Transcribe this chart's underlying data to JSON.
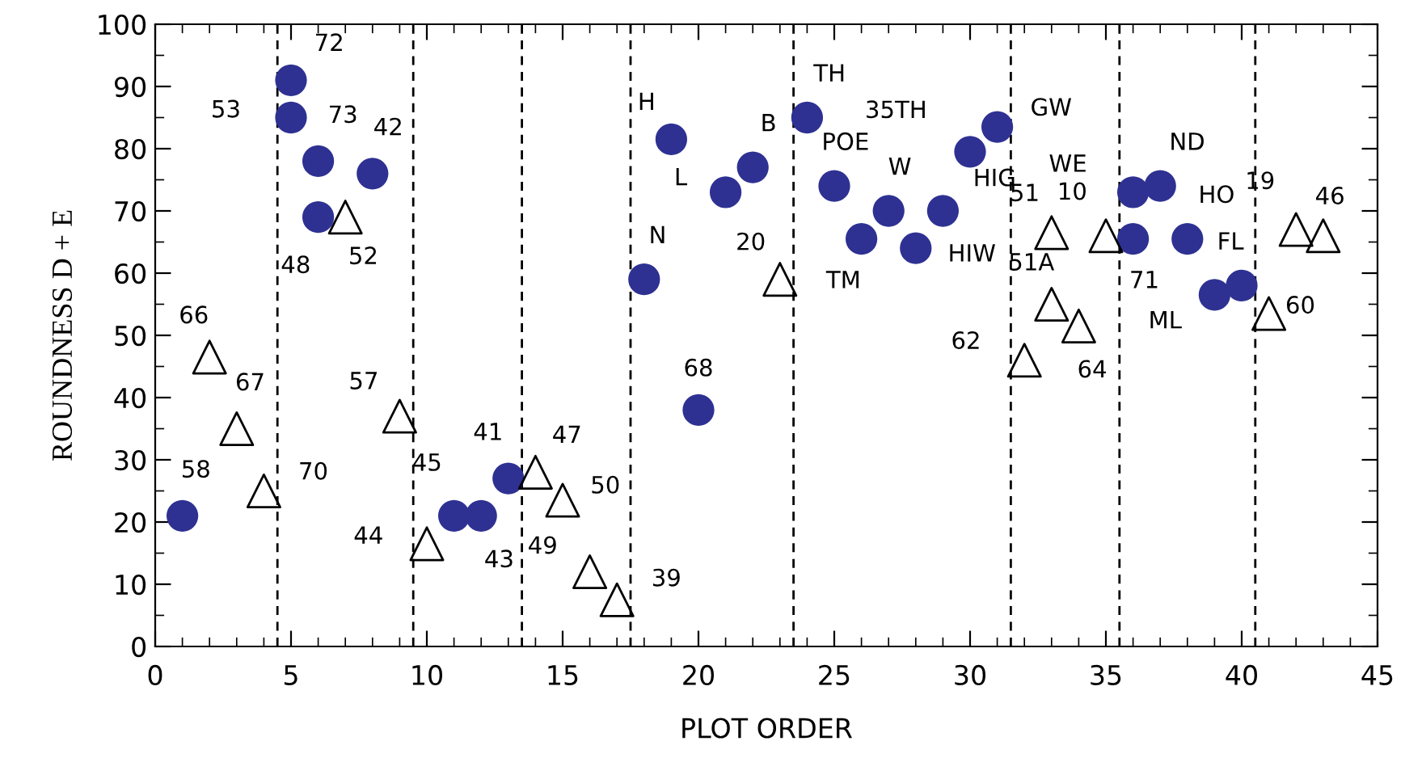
{
  "chart_data": {
    "type": "scatter",
    "xlabel": "PLOT ORDER",
    "ylabel": "ROUNDNESS D + E",
    "xlim": [
      0,
      45
    ],
    "xticks": [
      0,
      5,
      10,
      15,
      20,
      25,
      30,
      35,
      40,
      45
    ],
    "ylim": [
      0,
      100
    ],
    "yticks": [
      0,
      10,
      20,
      30,
      40,
      50,
      60,
      70,
      80,
      90,
      100
    ],
    "grid": false,
    "legend": false,
    "series": [
      {
        "color": "#2e3192",
        "marker": "circle",
        "x": [
          1,
          5,
          5,
          6,
          6,
          8,
          11,
          12,
          13,
          18,
          20,
          19,
          21,
          22,
          24,
          25,
          26,
          27,
          28,
          29,
          30,
          31,
          36,
          36,
          37,
          38,
          39,
          40
        ],
        "values": [
          21,
          91,
          85,
          78,
          69,
          76,
          21,
          21,
          27,
          59,
          38,
          81.5,
          73,
          77,
          85,
          74,
          65.5,
          70,
          64,
          70,
          79.5,
          83.5,
          73,
          65.5,
          74,
          65.5,
          56.5,
          58
        ]
      },
      {
        "color": "#000000",
        "marker": "triangle",
        "x": [
          2,
          3,
          4,
          7,
          9,
          10,
          14,
          15,
          16,
          17,
          23,
          32,
          33,
          33,
          34,
          35,
          41,
          42,
          43
        ],
        "values": [
          46.5,
          35,
          25,
          69,
          37,
          16.5,
          28,
          23.5,
          12,
          7.5,
          59,
          46,
          66.5,
          55,
          51.5,
          66,
          53.5,
          67,
          66
        ]
      }
    ],
    "ref_lines": [
      {
        "axis": "x",
        "value": 4.5,
        "line_style": "dashed"
      },
      {
        "axis": "x",
        "value": 9.5,
        "line_style": "dashed"
      },
      {
        "axis": "x",
        "value": 13.5,
        "line_style": "dashed"
      },
      {
        "axis": "x",
        "value": 17.5,
        "line_style": "dashed"
      },
      {
        "axis": "x",
        "value": 23.5,
        "line_style": "dashed"
      },
      {
        "axis": "x",
        "value": 31.5,
        "line_style": "dashed"
      },
      {
        "axis": "x",
        "value": 35.5,
        "line_style": "dashed"
      },
      {
        "axis": "x",
        "value": 40.5,
        "line_style": "dashed"
      }
    ],
    "annotations": [
      {
        "text": "58",
        "x": 1,
        "y": 21
      },
      {
        "text": "72",
        "x": 5,
        "y": 91
      },
      {
        "text": "53",
        "x": 5,
        "y": 85
      },
      {
        "text": "73",
        "x": 6,
        "y": 78
      },
      {
        "text": "48",
        "x": 6,
        "y": 69
      },
      {
        "text": "42",
        "x": 8,
        "y": 76
      },
      {
        "text": "45",
        "x": 11,
        "y": 21
      },
      {
        "text": "43",
        "x": 12,
        "y": 21
      },
      {
        "text": "41",
        "x": 13,
        "y": 27
      },
      {
        "text": "N",
        "x": 18,
        "y": 59
      },
      {
        "text": "68",
        "x": 20,
        "y": 38
      },
      {
        "text": "H",
        "x": 19,
        "y": 81.5
      },
      {
        "text": "L",
        "x": 21,
        "y": 73
      },
      {
        "text": "B",
        "x": 22,
        "y": 77
      },
      {
        "text": "TH",
        "x": 24,
        "y": 85
      },
      {
        "text": "POE",
        "x": 25,
        "y": 74
      },
      {
        "text": "TM",
        "x": 26,
        "y": 65.5
      },
      {
        "text": "W",
        "x": 27,
        "y": 70
      },
      {
        "text": "HIW",
        "x": 28,
        "y": 64
      },
      {
        "text": "HIG",
        "x": 29,
        "y": 70
      },
      {
        "text": "35TH",
        "x": 30,
        "y": 79.5
      },
      {
        "text": "GW",
        "x": 31,
        "y": 83.5
      },
      {
        "text": "WE",
        "x": 36,
        "y": 73
      },
      {
        "text": "71",
        "x": 36,
        "y": 65.5
      },
      {
        "text": "ND",
        "x": 37,
        "y": 74
      },
      {
        "text": "HO",
        "x": 38,
        "y": 65.5
      },
      {
        "text": "ML",
        "x": 39,
        "y": 56.5
      },
      {
        "text": "FL",
        "x": 40,
        "y": 58
      },
      {
        "text": "66",
        "x": 2,
        "y": 46.5
      },
      {
        "text": "67",
        "x": 3,
        "y": 35
      },
      {
        "text": "70",
        "x": 4,
        "y": 25
      },
      {
        "text": "52",
        "x": 7,
        "y": 69
      },
      {
        "text": "57",
        "x": 9,
        "y": 37
      },
      {
        "text": "44",
        "x": 10,
        "y": 16.5
      },
      {
        "text": "47",
        "x": 14,
        "y": 28
      },
      {
        "text": "50",
        "x": 15,
        "y": 23.5
      },
      {
        "text": "49",
        "x": 16,
        "y": 12
      },
      {
        "text": "39",
        "x": 17,
        "y": 7.5
      },
      {
        "text": "20",
        "x": 23,
        "y": 59
      },
      {
        "text": "62",
        "x": 32,
        "y": 46
      },
      {
        "text": "51",
        "x": 33,
        "y": 66.5
      },
      {
        "text": "51A",
        "x": 33,
        "y": 55
      },
      {
        "text": "64",
        "x": 34,
        "y": 51.5
      },
      {
        "text": "10",
        "x": 35,
        "y": 66
      },
      {
        "text": "60",
        "x": 41,
        "y": 53.5
      },
      {
        "text": "19",
        "x": 42,
        "y": 67
      },
      {
        "text": "46",
        "x": 43,
        "y": 66
      }
    ]
  }
}
